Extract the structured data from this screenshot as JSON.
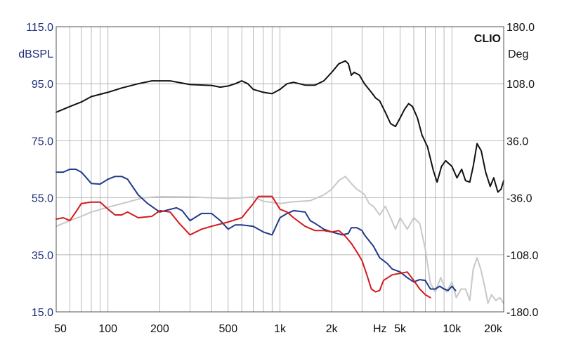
{
  "chart_data": {
    "type": "line",
    "brand": "CLIO",
    "xscale": "log",
    "xlim": [
      50,
      20000
    ],
    "x_ticks": [
      {
        "value": 50,
        "label": "50"
      },
      {
        "value": 100,
        "label": "100"
      },
      {
        "value": 200,
        "label": "200"
      },
      {
        "value": 500,
        "label": "500"
      },
      {
        "value": 1000,
        "label": "1k"
      },
      {
        "value": 2000,
        "label": "2k"
      },
      {
        "value": 5000,
        "label": "5k"
      },
      {
        "value": 10000,
        "label": "10k"
      },
      {
        "value": 20000,
        "label": "20k"
      }
    ],
    "x_unit_label": "Hz",
    "left_axis": {
      "label": "dBSPL",
      "ylim": [
        15,
        115
      ],
      "ticks": [
        "115.0",
        "95.0",
        "75.0",
        "55.0",
        "35.0",
        "15.0"
      ],
      "color": "#1f2f7a"
    },
    "right_axis": {
      "label": "Deg",
      "ylim": [
        -180,
        180
      ],
      "ticks": [
        "180.0",
        "108.0",
        "36.0",
        "-36.0",
        "-108.0",
        "-180.0"
      ],
      "color": "#111111"
    },
    "grid": true,
    "series": [
      {
        "color": "#111111",
        "axis": "left",
        "points": [
          [
            50,
            85
          ],
          [
            60,
            87
          ],
          [
            70,
            88.6
          ],
          [
            80,
            90.5
          ],
          [
            100,
            92
          ],
          [
            120,
            93.5
          ],
          [
            150,
            95
          ],
          [
            180,
            96
          ],
          [
            230,
            96
          ],
          [
            300,
            94.7
          ],
          [
            400,
            94.4
          ],
          [
            450,
            93.8
          ],
          [
            500,
            94.2
          ],
          [
            550,
            95
          ],
          [
            600,
            96
          ],
          [
            650,
            95
          ],
          [
            700,
            93
          ],
          [
            800,
            92
          ],
          [
            900,
            91.5
          ],
          [
            1000,
            93
          ],
          [
            1100,
            95
          ],
          [
            1200,
            95.5
          ],
          [
            1400,
            94.5
          ],
          [
            1600,
            94.5
          ],
          [
            1800,
            96
          ],
          [
            2000,
            99
          ],
          [
            2200,
            102
          ],
          [
            2400,
            103
          ],
          [
            2500,
            102
          ],
          [
            2600,
            98
          ],
          [
            2700,
            99
          ],
          [
            2900,
            98
          ],
          [
            3100,
            95
          ],
          [
            3400,
            92
          ],
          [
            3600,
            90
          ],
          [
            3800,
            89
          ],
          [
            4100,
            85
          ],
          [
            4400,
            81
          ],
          [
            4700,
            80
          ],
          [
            5000,
            83
          ],
          [
            5300,
            86
          ],
          [
            5600,
            88
          ],
          [
            5900,
            87
          ],
          [
            6300,
            83
          ],
          [
            6700,
            77
          ],
          [
            7200,
            73
          ],
          [
            7800,
            64.5
          ],
          [
            8200,
            60.5
          ],
          [
            8700,
            66
          ],
          [
            9200,
            68
          ],
          [
            10000,
            66
          ],
          [
            10700,
            62
          ],
          [
            11400,
            65
          ],
          [
            12000,
            61
          ],
          [
            12700,
            60.5
          ],
          [
            13300,
            66
          ],
          [
            14000,
            74
          ],
          [
            14800,
            71.5
          ],
          [
            15700,
            64
          ],
          [
            16700,
            59
          ],
          [
            17500,
            62
          ],
          [
            18500,
            57
          ],
          [
            19300,
            58
          ],
          [
            20000,
            61
          ]
        ]
      },
      {
        "color": "#c8c8c8",
        "axis": "left",
        "points": [
          [
            50,
            45
          ],
          [
            60,
            47
          ],
          [
            70,
            48.5
          ],
          [
            80,
            50
          ],
          [
            100,
            51.7
          ],
          [
            130,
            53.5
          ],
          [
            160,
            55
          ],
          [
            200,
            55.4
          ],
          [
            300,
            55.3
          ],
          [
            400,
            55
          ],
          [
            500,
            54.8
          ],
          [
            600,
            55
          ],
          [
            700,
            55.3
          ],
          [
            800,
            53.8
          ],
          [
            1000,
            53
          ],
          [
            1200,
            53.6
          ],
          [
            1500,
            54
          ],
          [
            1800,
            56
          ],
          [
            2000,
            58
          ],
          [
            2200,
            61
          ],
          [
            2400,
            62.5
          ],
          [
            2600,
            60
          ],
          [
            2800,
            58
          ],
          [
            3100,
            56.2
          ],
          [
            3300,
            53
          ],
          [
            3500,
            52
          ],
          [
            3800,
            49
          ],
          [
            4100,
            52
          ],
          [
            4400,
            48
          ],
          [
            4700,
            44
          ],
          [
            5000,
            48
          ],
          [
            5500,
            44
          ],
          [
            6000,
            48
          ],
          [
            6500,
            46
          ],
          [
            7000,
            37
          ],
          [
            7500,
            25
          ],
          [
            8000,
            22
          ],
          [
            8600,
            27
          ],
          [
            9300,
            22
          ],
          [
            10000,
            25.5
          ],
          [
            10600,
            20
          ],
          [
            11300,
            23
          ],
          [
            12000,
            23
          ],
          [
            12700,
            19
          ],
          [
            13300,
            30
          ],
          [
            14000,
            34
          ],
          [
            14700,
            30
          ],
          [
            15500,
            24
          ],
          [
            16200,
            18
          ],
          [
            17000,
            21
          ],
          [
            18000,
            19
          ],
          [
            19000,
            20
          ],
          [
            20000,
            18
          ]
        ]
      },
      {
        "color": "#1f3a8a",
        "axis": "left",
        "points": [
          [
            50,
            64
          ],
          [
            55,
            64
          ],
          [
            60,
            65
          ],
          [
            65,
            65
          ],
          [
            70,
            64
          ],
          [
            75,
            62
          ],
          [
            80,
            60
          ],
          [
            90,
            59.8
          ],
          [
            100,
            61.5
          ],
          [
            110,
            62.5
          ],
          [
            120,
            62.5
          ],
          [
            130,
            61.5
          ],
          [
            150,
            56
          ],
          [
            170,
            53
          ],
          [
            200,
            50
          ],
          [
            250,
            51.5
          ],
          [
            270,
            50.5
          ],
          [
            300,
            47
          ],
          [
            350,
            49.5
          ],
          [
            400,
            49.5
          ],
          [
            450,
            47
          ],
          [
            500,
            44
          ],
          [
            550,
            45.5
          ],
          [
            600,
            45.5
          ],
          [
            700,
            45
          ],
          [
            800,
            43
          ],
          [
            900,
            42
          ],
          [
            1000,
            48
          ],
          [
            1100,
            49.5
          ],
          [
            1200,
            50.5
          ],
          [
            1400,
            50
          ],
          [
            1500,
            47
          ],
          [
            1600,
            46
          ],
          [
            1800,
            44
          ],
          [
            2000,
            43
          ],
          [
            2300,
            42
          ],
          [
            2500,
            42.5
          ],
          [
            2600,
            44.5
          ],
          [
            2800,
            44.5
          ],
          [
            3000,
            43.5
          ],
          [
            3100,
            42
          ],
          [
            3500,
            38
          ],
          [
            3800,
            34
          ],
          [
            4200,
            32
          ],
          [
            4500,
            30
          ],
          [
            5000,
            29
          ],
          [
            5500,
            27
          ],
          [
            6000,
            25.5
          ],
          [
            6500,
            26.3
          ],
          [
            7000,
            26
          ],
          [
            7500,
            23
          ],
          [
            8000,
            23
          ],
          [
            8500,
            24
          ],
          [
            9000,
            23
          ],
          [
            9500,
            22.5
          ],
          [
            10000,
            24
          ],
          [
            10500,
            22.5
          ]
        ]
      },
      {
        "color": "#d31a1a",
        "axis": "left",
        "points": [
          [
            50,
            47.5
          ],
          [
            55,
            48
          ],
          [
            60,
            47
          ],
          [
            65,
            50
          ],
          [
            70,
            53
          ],
          [
            80,
            53.5
          ],
          [
            90,
            53.5
          ],
          [
            100,
            51
          ],
          [
            110,
            49
          ],
          [
            120,
            49
          ],
          [
            130,
            50
          ],
          [
            150,
            48
          ],
          [
            180,
            48.5
          ],
          [
            200,
            50.5
          ],
          [
            230,
            50
          ],
          [
            260,
            46
          ],
          [
            300,
            42
          ],
          [
            350,
            44
          ],
          [
            400,
            45
          ],
          [
            500,
            46.5
          ],
          [
            600,
            48
          ],
          [
            700,
            53
          ],
          [
            750,
            55.5
          ],
          [
            800,
            55.5
          ],
          [
            900,
            55.5
          ],
          [
            1000,
            51
          ],
          [
            1100,
            50
          ],
          [
            1200,
            48
          ],
          [
            1400,
            45
          ],
          [
            1600,
            43.5
          ],
          [
            1800,
            43.5
          ],
          [
            2000,
            43
          ],
          [
            2200,
            43.5
          ],
          [
            2400,
            41.5
          ],
          [
            2600,
            39
          ],
          [
            2800,
            36
          ],
          [
            3000,
            33
          ],
          [
            3200,
            28
          ],
          [
            3400,
            23
          ],
          [
            3600,
            22
          ],
          [
            3800,
            22.5
          ],
          [
            4000,
            26
          ],
          [
            4500,
            28
          ],
          [
            5000,
            28.5
          ],
          [
            5500,
            29
          ],
          [
            6000,
            26
          ],
          [
            6500,
            23
          ],
          [
            7000,
            21
          ],
          [
            7500,
            20
          ]
        ]
      }
    ]
  }
}
